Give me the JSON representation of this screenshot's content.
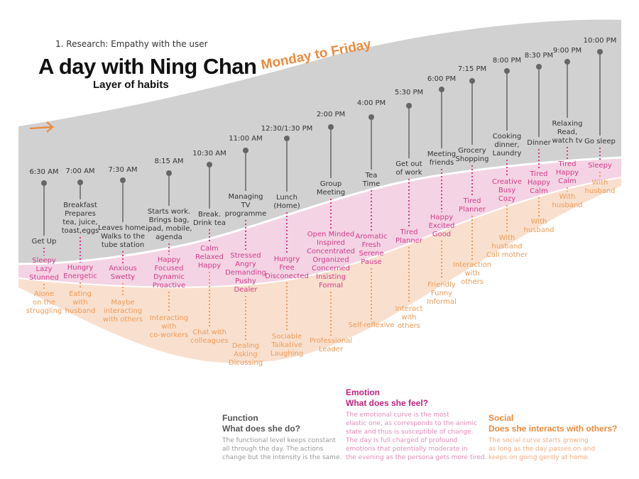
{
  "header": {
    "subtitle": "1. Research: Empathy with the user",
    "title": "A day with Ning Chan",
    "layer": "Layer of habits",
    "banner": "Monday to Friday"
  },
  "colors": {
    "function": "#333333",
    "emotion": "#d63a8c",
    "social": "#ef9a57",
    "banner": "#ef8a3c",
    "gray_band": "#cfcfcf",
    "pink_band": "#f3cfe1",
    "orange_band": "#f8ddc9"
  },
  "events": [
    {
      "time": "6:30 AM",
      "function": [
        "Get Up"
      ],
      "emotion": [
        "Sleepy",
        "Lazy",
        "Stunned"
      ],
      "social": [
        "Alone",
        "on the",
        "struggling"
      ]
    },
    {
      "time": "7:00 AM",
      "function": [
        "Breakfast",
        "Prepares",
        "tea, juice,",
        "toast,eggs"
      ],
      "emotion": [
        "Hungry",
        "Energetic"
      ],
      "social": [
        "Eating",
        "with",
        "husband"
      ]
    },
    {
      "time": "7:30 AM",
      "function": [
        "Leaves home.",
        "Walks to the",
        "tube station"
      ],
      "emotion": [
        "Anxious",
        "Swetty"
      ],
      "social": [
        "Maybe",
        "interacting",
        "with others"
      ]
    },
    {
      "time": "8:15 AM",
      "function": [
        "Starts work.",
        "Brings bag,",
        "ipad, mobile,",
        "agenda"
      ],
      "emotion": [
        "Happy",
        "Focused",
        "Dynamic",
        "Proactive"
      ],
      "social": [
        "Interacting",
        "with",
        "co-workers"
      ]
    },
    {
      "time": "10:30 AM",
      "function": [
        "Break.",
        "Drink tea"
      ],
      "emotion": [
        "Calm",
        "Relaxed",
        "Happy"
      ],
      "social": [
        "Chat with",
        "colleagues"
      ]
    },
    {
      "time": "11:00 AM",
      "function": [
        "Managing",
        "TV",
        "programme"
      ],
      "emotion": [
        "Stressed",
        "Angry",
        "Demanding",
        "Pushy",
        "Dealer"
      ],
      "social": [
        "Dealing",
        "Asking",
        "Dicussing"
      ]
    },
    {
      "time": "12:30/1:30 PM",
      "function": [
        "Lunch",
        "(Home)"
      ],
      "emotion": [
        "Hungry",
        "Free",
        "Disconected"
      ],
      "social": [
        "Sociable",
        "Talkative",
        "Laughing"
      ]
    },
    {
      "time": "2:00 PM",
      "function": [
        "Group",
        "Meeting"
      ],
      "emotion": [
        "Open Minded",
        "Inspired",
        "Concentrated",
        "Organized",
        "Concerned",
        "Insisting",
        "Formal"
      ],
      "social": [
        "Professional",
        "Leader"
      ]
    },
    {
      "time": "4:00 PM",
      "function": [
        "Tea",
        "Time"
      ],
      "emotion": [
        "Aromatic",
        "Fresh",
        "Serene",
        "Pause"
      ],
      "social": [
        "Self-reflexive"
      ]
    },
    {
      "time": "5:30 PM",
      "function": [
        "Get out",
        "of work"
      ],
      "emotion": [
        "Tired",
        "Planner"
      ],
      "social": [
        "Interact",
        "with",
        "others"
      ]
    },
    {
      "time": "6:00 PM",
      "function": [
        "Meeting",
        "friends"
      ],
      "emotion": [
        "Happy",
        "Excited",
        "Good"
      ],
      "social": [
        "Friendly",
        "Funny",
        "Informal"
      ]
    },
    {
      "time": "7:15 PM",
      "function": [
        "Grocery",
        "Shopping"
      ],
      "emotion": [
        "Tired",
        "Planner"
      ],
      "social": [
        "Interaction",
        "with",
        "others"
      ]
    },
    {
      "time": "8:00 PM",
      "function": [
        "Cooking",
        "dinner,",
        "Laundry"
      ],
      "emotion": [
        "Creative",
        "Busy",
        "Cozy"
      ],
      "social": [
        "With",
        "husband",
        "Call mother"
      ]
    },
    {
      "time": "8:30 PM",
      "function": [
        "Dinner"
      ],
      "emotion": [
        "Tired",
        "Happy",
        "Calm"
      ],
      "social": [
        "With",
        "husband"
      ]
    },
    {
      "time": "9:00 PM",
      "function": [
        "Relaxing",
        "Read,",
        "watch tv"
      ],
      "emotion": [
        "Tired",
        "Happy",
        "Calm"
      ],
      "social": [
        "With",
        "husband"
      ]
    },
    {
      "time": "10:00 PM",
      "function": [
        "Go sleep"
      ],
      "emotion": [
        "Sleepy"
      ],
      "social": [
        "With",
        "husband"
      ]
    }
  ],
  "legend": {
    "function": {
      "title": "Function",
      "question": "What does she do?",
      "body": [
        "The functional level keeps constant",
        "all through the day. The actions",
        "change but the intensity is the same."
      ]
    },
    "emotion": {
      "title": "Emotion",
      "question": "What does she feel?",
      "body": [
        "The emotional curve is the most",
        "elastic one, as corresponds to the animic",
        "state and thus is susceptible of change.",
        "The day is full charged of profound",
        "emotions that potentially moderate in",
        "the evening as the persona gets more tired."
      ]
    },
    "social": {
      "title": "Social",
      "question": "Does she interacts with others?",
      "body": [
        "The social curve starts growing",
        "as long as the day passes on and",
        "keeps on going gently at home."
      ]
    }
  }
}
